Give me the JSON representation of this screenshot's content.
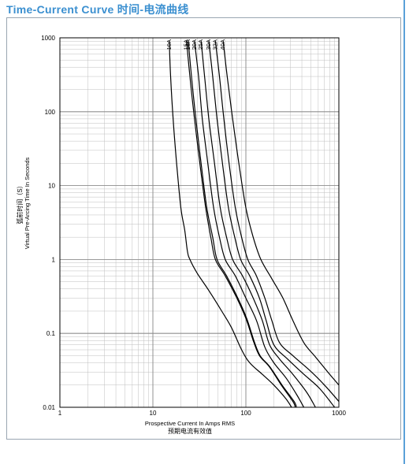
{
  "header": {
    "title": "Time-Current Curve 时间-电流曲线"
  },
  "colors": {
    "title": "#3a8fd0",
    "curve": "#000000",
    "grid": "#bfbfbf",
    "frame_edge": "#5aa0d8"
  },
  "chart_data": {
    "type": "line",
    "title": "",
    "xlabel": "Prospective Current In Amps RMS",
    "xlabel_cn": "预期电流有效值",
    "ylabel": "Virtual Pre-Arcing Time In Seconds",
    "ylabel_cn": "弧前时间（S）",
    "x_scale": "log",
    "y_scale": "log",
    "xlim": [
      1,
      1000
    ],
    "ylim": [
      0.01,
      1000
    ],
    "x_ticks": [
      1,
      10,
      100,
      1000
    ],
    "y_ticks": [
      0.01,
      0.1,
      1,
      10,
      100,
      1000
    ],
    "x_tick_labels": [
      "1",
      "10",
      "100",
      "1000"
    ],
    "y_tick_labels": [
      "0.01",
      "0.1",
      "1",
      "10",
      "100",
      "1000"
    ],
    "grid": true,
    "series": [
      {
        "name": "10A",
        "points": [
          [
            15,
            900
          ],
          [
            15.5,
            300
          ],
          [
            16.5,
            80
          ],
          [
            18,
            20
          ],
          [
            20,
            5
          ],
          [
            22,
            2.5
          ],
          [
            23.5,
            1.3
          ],
          [
            25,
            1
          ],
          [
            30,
            0.65
          ],
          [
            40,
            0.38
          ],
          [
            55,
            0.2
          ],
          [
            70,
            0.12
          ],
          [
            90,
            0.06
          ],
          [
            110,
            0.04
          ],
          [
            150,
            0.028
          ],
          [
            200,
            0.02
          ],
          [
            270,
            0.013
          ],
          [
            310,
            0.01
          ]
        ]
      },
      {
        "name": "15A",
        "points": [
          [
            23,
            900
          ],
          [
            25,
            300
          ],
          [
            28,
            80
          ],
          [
            32,
            20
          ],
          [
            37,
            5
          ],
          [
            42,
            2
          ],
          [
            47,
            1
          ],
          [
            60,
            0.6
          ],
          [
            80,
            0.3
          ],
          [
            100,
            0.16
          ],
          [
            120,
            0.08
          ],
          [
            140,
            0.05
          ],
          [
            180,
            0.035
          ],
          [
            240,
            0.02
          ],
          [
            320,
            0.012
          ],
          [
            340,
            0.01
          ]
        ]
      },
      {
        "name": "16A",
        "points": [
          [
            24,
            900
          ],
          [
            26,
            300
          ],
          [
            29,
            80
          ],
          [
            33,
            20
          ],
          [
            38,
            5
          ],
          [
            44,
            2
          ],
          [
            49,
            1
          ],
          [
            62,
            0.6
          ],
          [
            82,
            0.3
          ],
          [
            102,
            0.16
          ],
          [
            122,
            0.08
          ],
          [
            142,
            0.05
          ],
          [
            182,
            0.035
          ],
          [
            245,
            0.02
          ],
          [
            330,
            0.012
          ],
          [
            350,
            0.01
          ]
        ]
      },
      {
        "name": "20A",
        "points": [
          [
            28,
            900
          ],
          [
            31,
            300
          ],
          [
            34,
            80
          ],
          [
            39,
            20
          ],
          [
            45,
            5
          ],
          [
            52,
            2
          ],
          [
            60,
            1
          ],
          [
            77,
            0.6
          ],
          [
            100,
            0.3
          ],
          [
            130,
            0.15
          ],
          [
            160,
            0.065
          ],
          [
            200,
            0.04
          ],
          [
            270,
            0.025
          ],
          [
            350,
            0.015
          ],
          [
            420,
            0.01
          ]
        ]
      },
      {
        "name": "25A",
        "points": [
          [
            33,
            900
          ],
          [
            36,
            300
          ],
          [
            40,
            80
          ],
          [
            46,
            20
          ],
          [
            53,
            5
          ],
          [
            62,
            2
          ],
          [
            72,
            1
          ],
          [
            92,
            0.6
          ],
          [
            120,
            0.3
          ],
          [
            150,
            0.15
          ],
          [
            180,
            0.07
          ],
          [
            230,
            0.045
          ],
          [
            320,
            0.028
          ],
          [
            450,
            0.016
          ],
          [
            560,
            0.01
          ]
        ]
      },
      {
        "name": "30A",
        "points": [
          [
            40,
            900
          ],
          [
            44,
            300
          ],
          [
            49,
            80
          ],
          [
            56,
            20
          ],
          [
            65,
            5
          ],
          [
            76,
            2
          ],
          [
            88,
            1
          ],
          [
            110,
            0.6
          ],
          [
            140,
            0.3
          ],
          [
            165,
            0.15
          ],
          [
            200,
            0.07
          ],
          [
            280,
            0.045
          ],
          [
            420,
            0.028
          ],
          [
            620,
            0.018
          ],
          [
            900,
            0.01
          ]
        ]
      },
      {
        "name": "32A",
        "points": [
          [
            47,
            900
          ],
          [
            52,
            300
          ],
          [
            58,
            80
          ],
          [
            66,
            20
          ],
          [
            77,
            5
          ],
          [
            90,
            2
          ],
          [
            105,
            1
          ],
          [
            130,
            0.6
          ],
          [
            160,
            0.3
          ],
          [
            190,
            0.15
          ],
          [
            230,
            0.075
          ],
          [
            320,
            0.05
          ],
          [
            480,
            0.032
          ],
          [
            700,
            0.02
          ],
          [
            1000,
            0.012
          ]
        ]
      },
      {
        "name": "40A",
        "points": [
          [
            57,
            900
          ],
          [
            63,
            300
          ],
          [
            72,
            80
          ],
          [
            84,
            20
          ],
          [
            100,
            5
          ],
          [
            120,
            2
          ],
          [
            145,
            1
          ],
          [
            190,
            0.55
          ],
          [
            250,
            0.3
          ],
          [
            320,
            0.15
          ],
          [
            420,
            0.075
          ],
          [
            560,
            0.048
          ],
          [
            760,
            0.03
          ],
          [
            1000,
            0.02
          ]
        ]
      }
    ]
  }
}
